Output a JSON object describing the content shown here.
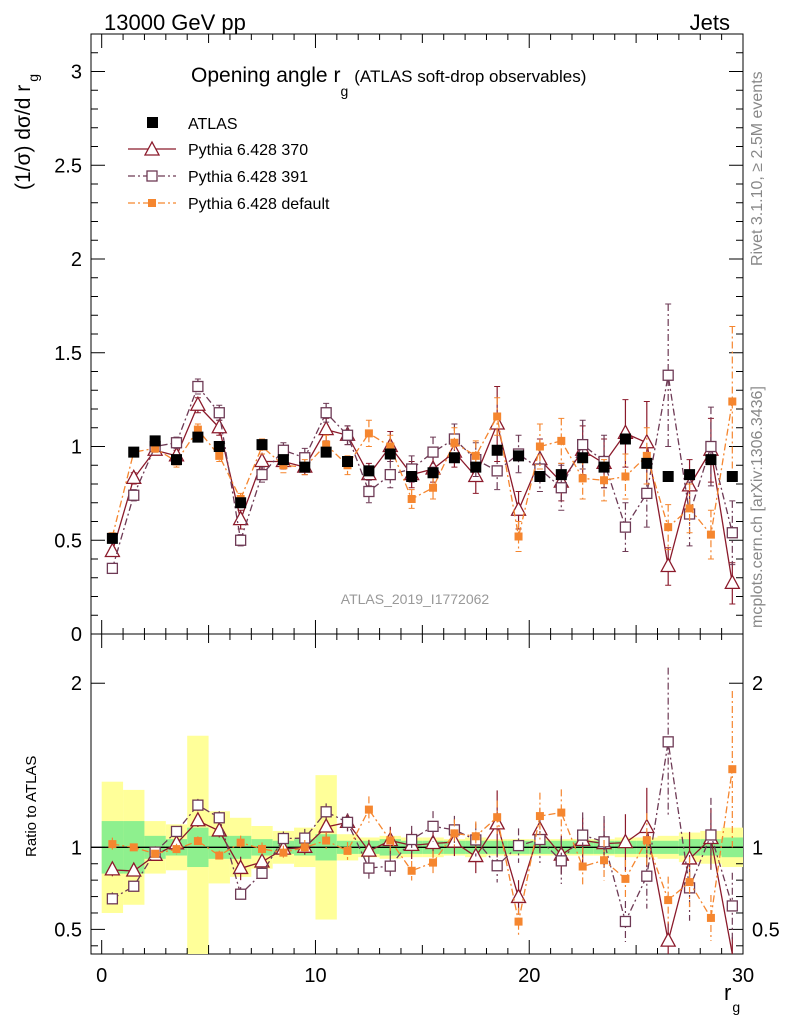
{
  "header": {
    "left": "13000 GeV pp",
    "right": "Jets"
  },
  "title_main": "Opening angle r",
  "title_sub": "g",
  "title_suffix": "(ATLAS soft-drop observables)",
  "ylabel_main": "(1/σ) dσ/d r",
  "ylabel_sub": "g",
  "ratio_ylabel": "Ratio to ATLAS",
  "xlabel_main": "r",
  "xlabel_sub": "g",
  "analysis_id": "ATLAS_2019_I1772062",
  "side_label_top": "Rivet 3.1.10, ≥ 2.5M events",
  "side_label_bottom": "mcplots.cern.ch [arXiv:1306.3436]",
  "colors": {
    "atlas": "#000000",
    "p370": "#8b1a2b",
    "p391": "#6e3a55",
    "pdef": "#f5862f",
    "band_green": "#8ef08e",
    "band_yellow": "#ffff99"
  },
  "chart_data": {
    "type": "scatter",
    "x": [
      0.5,
      1.5,
      2.5,
      3.5,
      4.5,
      5.5,
      6.5,
      7.5,
      8.5,
      9.5,
      10.5,
      11.5,
      12.5,
      13.5,
      14.5,
      15.5,
      16.5,
      17.5,
      18.5,
      19.5,
      20.5,
      21.5,
      22.5,
      23.5,
      24.5,
      25.5,
      26.5,
      27.5,
      28.5,
      29.5
    ],
    "xlim": [
      -0.5,
      30
    ],
    "xticks": [
      0,
      10,
      20,
      30
    ],
    "main_ylim": [
      0,
      3.2
    ],
    "main_yticks": [
      0,
      0.5,
      1,
      1.5,
      2,
      2.5,
      3
    ],
    "main_ytick_labels": [
      "0",
      "0.5",
      "1",
      "1.5",
      "2",
      "2.5",
      "3"
    ],
    "ratio_ylim": [
      0.35,
      2.3
    ],
    "ratio_yticks": [
      0.5,
      1,
      2
    ],
    "ratio_ytick_labels": [
      "0.5",
      "1",
      "2"
    ],
    "series": [
      {
        "name": "ATLAS",
        "marker": "square-filled",
        "values": [
          0.51,
          0.97,
          1.03,
          0.93,
          1.05,
          1.0,
          0.7,
          1.01,
          0.93,
          0.89,
          0.97,
          0.92,
          0.87,
          0.96,
          0.84,
          0.86,
          0.94,
          0.89,
          0.98,
          0.95,
          0.84,
          0.85,
          0.94,
          0.89,
          1.04,
          0.91,
          0.84,
          0.85,
          0.93,
          0.84
        ],
        "errors": [
          0.01,
          0.01,
          0.01,
          0.01,
          0.01,
          0.01,
          0.01,
          0.01,
          0.01,
          0.01,
          0.01,
          0.01,
          0.01,
          0.01,
          0.01,
          0.01,
          0.01,
          0.01,
          0.01,
          0.01,
          0.01,
          0.01,
          0.01,
          0.01,
          0.01,
          0.01,
          0.01,
          0.01,
          0.01,
          0.01
        ]
      },
      {
        "name": "Pythia 6.428 370",
        "marker": "triangle-open",
        "line": "solid",
        "values": [
          0.44,
          0.83,
          0.98,
          0.95,
          1.22,
          1.1,
          0.61,
          0.92,
          0.92,
          0.89,
          1.09,
          1.06,
          0.85,
          1.0,
          0.85,
          0.88,
          0.97,
          0.84,
          1.12,
          0.66,
          0.93,
          0.81,
          0.98,
          0.91,
          1.07,
          1.02,
          0.36,
          0.79,
          0.98,
          0.27
        ],
        "errors": [
          0.02,
          0.03,
          0.02,
          0.03,
          0.04,
          0.04,
          0.05,
          0.04,
          0.04,
          0.04,
          0.06,
          0.05,
          0.06,
          0.08,
          0.07,
          0.07,
          0.08,
          0.09,
          0.2,
          0.1,
          0.11,
          0.1,
          0.13,
          0.13,
          0.18,
          0.22,
          0.1,
          0.14,
          0.17,
          0.11
        ]
      },
      {
        "name": "Pythia 6.428 391",
        "marker": "square-open",
        "line": "dashdot",
        "values": [
          0.35,
          0.74,
          1.0,
          1.02,
          1.32,
          1.18,
          0.5,
          0.85,
          0.98,
          0.94,
          1.18,
          1.06,
          0.76,
          0.85,
          0.88,
          0.97,
          1.04,
          0.93,
          0.87,
          0.96,
          0.88,
          0.78,
          1.01,
          0.92,
          0.57,
          0.75,
          1.38,
          0.64,
          1.0,
          0.54
        ],
        "errors": [
          0.02,
          0.03,
          0.03,
          0.03,
          0.04,
          0.04,
          0.03,
          0.04,
          0.04,
          0.05,
          0.05,
          0.05,
          0.06,
          0.07,
          0.07,
          0.08,
          0.08,
          0.09,
          0.1,
          0.1,
          0.12,
          0.12,
          0.13,
          0.14,
          0.13,
          0.18,
          0.38,
          0.17,
          0.21,
          0.17
        ]
      },
      {
        "name": "Pythia 6.428 default",
        "marker": "square-filled-small",
        "line": "dashdot",
        "values": [
          0.52,
          0.97,
          0.99,
          0.92,
          1.09,
          0.95,
          0.72,
          1.0,
          0.9,
          0.89,
          1.01,
          0.9,
          1.07,
          1.0,
          0.72,
          0.78,
          1.02,
          0.95,
          1.16,
          0.52,
          1.0,
          1.03,
          0.83,
          0.82,
          0.84,
          0.95,
          0.57,
          0.67,
          0.53,
          1.24
        ],
        "errors": [
          0.02,
          0.02,
          0.02,
          0.03,
          0.03,
          0.03,
          0.03,
          0.04,
          0.04,
          0.04,
          0.05,
          0.05,
          0.07,
          0.06,
          0.05,
          0.06,
          0.08,
          0.08,
          0.1,
          0.08,
          0.12,
          0.12,
          0.11,
          0.11,
          0.12,
          0.15,
          0.12,
          0.13,
          0.13,
          0.4
        ]
      }
    ],
    "band_green_half": [
      0.16,
      0.16,
      0.07,
      0.05,
      0.12,
      0.07,
      0.07,
      0.05,
      0.04,
      0.05,
      0.08,
      0.04,
      0.04,
      0.05,
      0.04,
      0.04,
      0.04,
      0.04,
      0.04,
      0.04,
      0.04,
      0.04,
      0.04,
      0.04,
      0.04,
      0.04,
      0.04,
      0.05,
      0.05,
      0.06
    ],
    "band_yellow_half": [
      0.4,
      0.35,
      0.16,
      0.14,
      0.68,
      0.22,
      0.18,
      0.13,
      0.1,
      0.12,
      0.44,
      0.08,
      0.06,
      0.07,
      0.06,
      0.06,
      0.05,
      0.06,
      0.05,
      0.05,
      0.05,
      0.05,
      0.05,
      0.05,
      0.06,
      0.06,
      0.07,
      0.09,
      0.1,
      0.12
    ]
  }
}
